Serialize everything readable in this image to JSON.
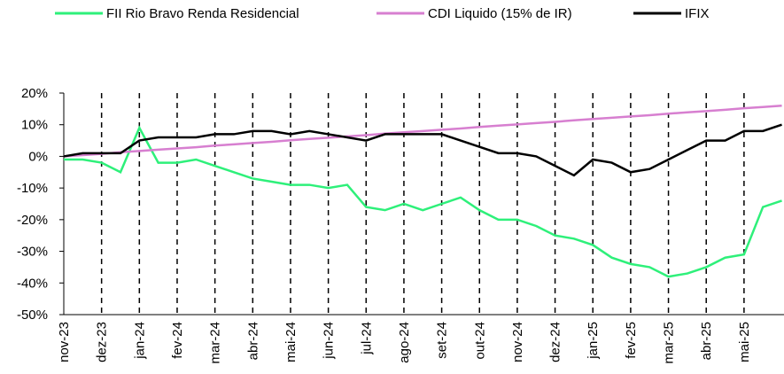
{
  "chart_data": {
    "type": "line",
    "categories": [
      "nov-23",
      null,
      "dez-23",
      null,
      "jan-24",
      null,
      "fev-24",
      null,
      "mar-24",
      null,
      "abr-24",
      null,
      "mai-24",
      null,
      "jun-24",
      null,
      "jul-24",
      null,
      "ago-24",
      null,
      "set-24",
      null,
      "out-24",
      null,
      "nov-24",
      null,
      "dez-24",
      null,
      "jan-25",
      null,
      "fev-25",
      null,
      "mar-25",
      null,
      "abr-25",
      null,
      "mai-25",
      null,
      null
    ],
    "series": [
      {
        "name": "FII Rio Bravo Renda Residencial",
        "color": "#2ef07a",
        "values": [
          -1,
          -1,
          -2,
          -5,
          9,
          -2,
          -2,
          -1,
          -3,
          -5,
          -7,
          -8,
          -9,
          -9,
          -10,
          -9,
          -16,
          -17,
          -15,
          -17,
          -15,
          -13,
          -17,
          -20,
          -20,
          -22,
          -25,
          -26,
          -28,
          -32,
          -34,
          -35,
          -38,
          -37,
          -35,
          -32,
          -31,
          -16,
          -14
        ]
      },
      {
        "name": "CDI Liquido (15% de IR)",
        "color": "#d77fd0",
        "values": [
          0,
          0.4,
          0.8,
          1.3,
          1.7,
          2.1,
          2.5,
          2.9,
          3.4,
          3.8,
          4.2,
          4.6,
          5.1,
          5.5,
          5.9,
          6.3,
          6.7,
          7.2,
          7.6,
          8,
          8.4,
          8.8,
          9.3,
          9.7,
          10.1,
          10.5,
          10.9,
          11.4,
          11.8,
          12.2,
          12.6,
          13,
          13.5,
          13.9,
          14.3,
          14.7,
          15.2,
          15.6,
          16
        ]
      },
      {
        "name": "IFIX",
        "color": "#000000",
        "values": [
          0,
          1,
          1,
          1,
          5,
          6,
          6,
          6,
          7,
          7,
          8,
          8,
          7,
          8,
          7,
          6,
          5,
          7,
          7,
          7,
          7,
          5,
          3,
          1,
          1,
          0,
          -3,
          -6,
          -1,
          -2,
          -5,
          -4,
          -1,
          2,
          5,
          5,
          8,
          8,
          10
        ]
      }
    ],
    "ylim": [
      -50,
      20
    ],
    "yticks": [
      {
        "value": -50,
        "label": "-50%"
      },
      {
        "value": -40,
        "label": "-40%"
      },
      {
        "value": -30,
        "label": "-30%"
      },
      {
        "value": -20,
        "label": "-20%"
      },
      {
        "value": -10,
        "label": "-10%"
      },
      {
        "value": 0,
        "label": "0%"
      },
      {
        "value": 10,
        "label": "10%"
      },
      {
        "value": 20,
        "label": "20%"
      }
    ],
    "vgrid": "dashed",
    "legend": "top"
  }
}
